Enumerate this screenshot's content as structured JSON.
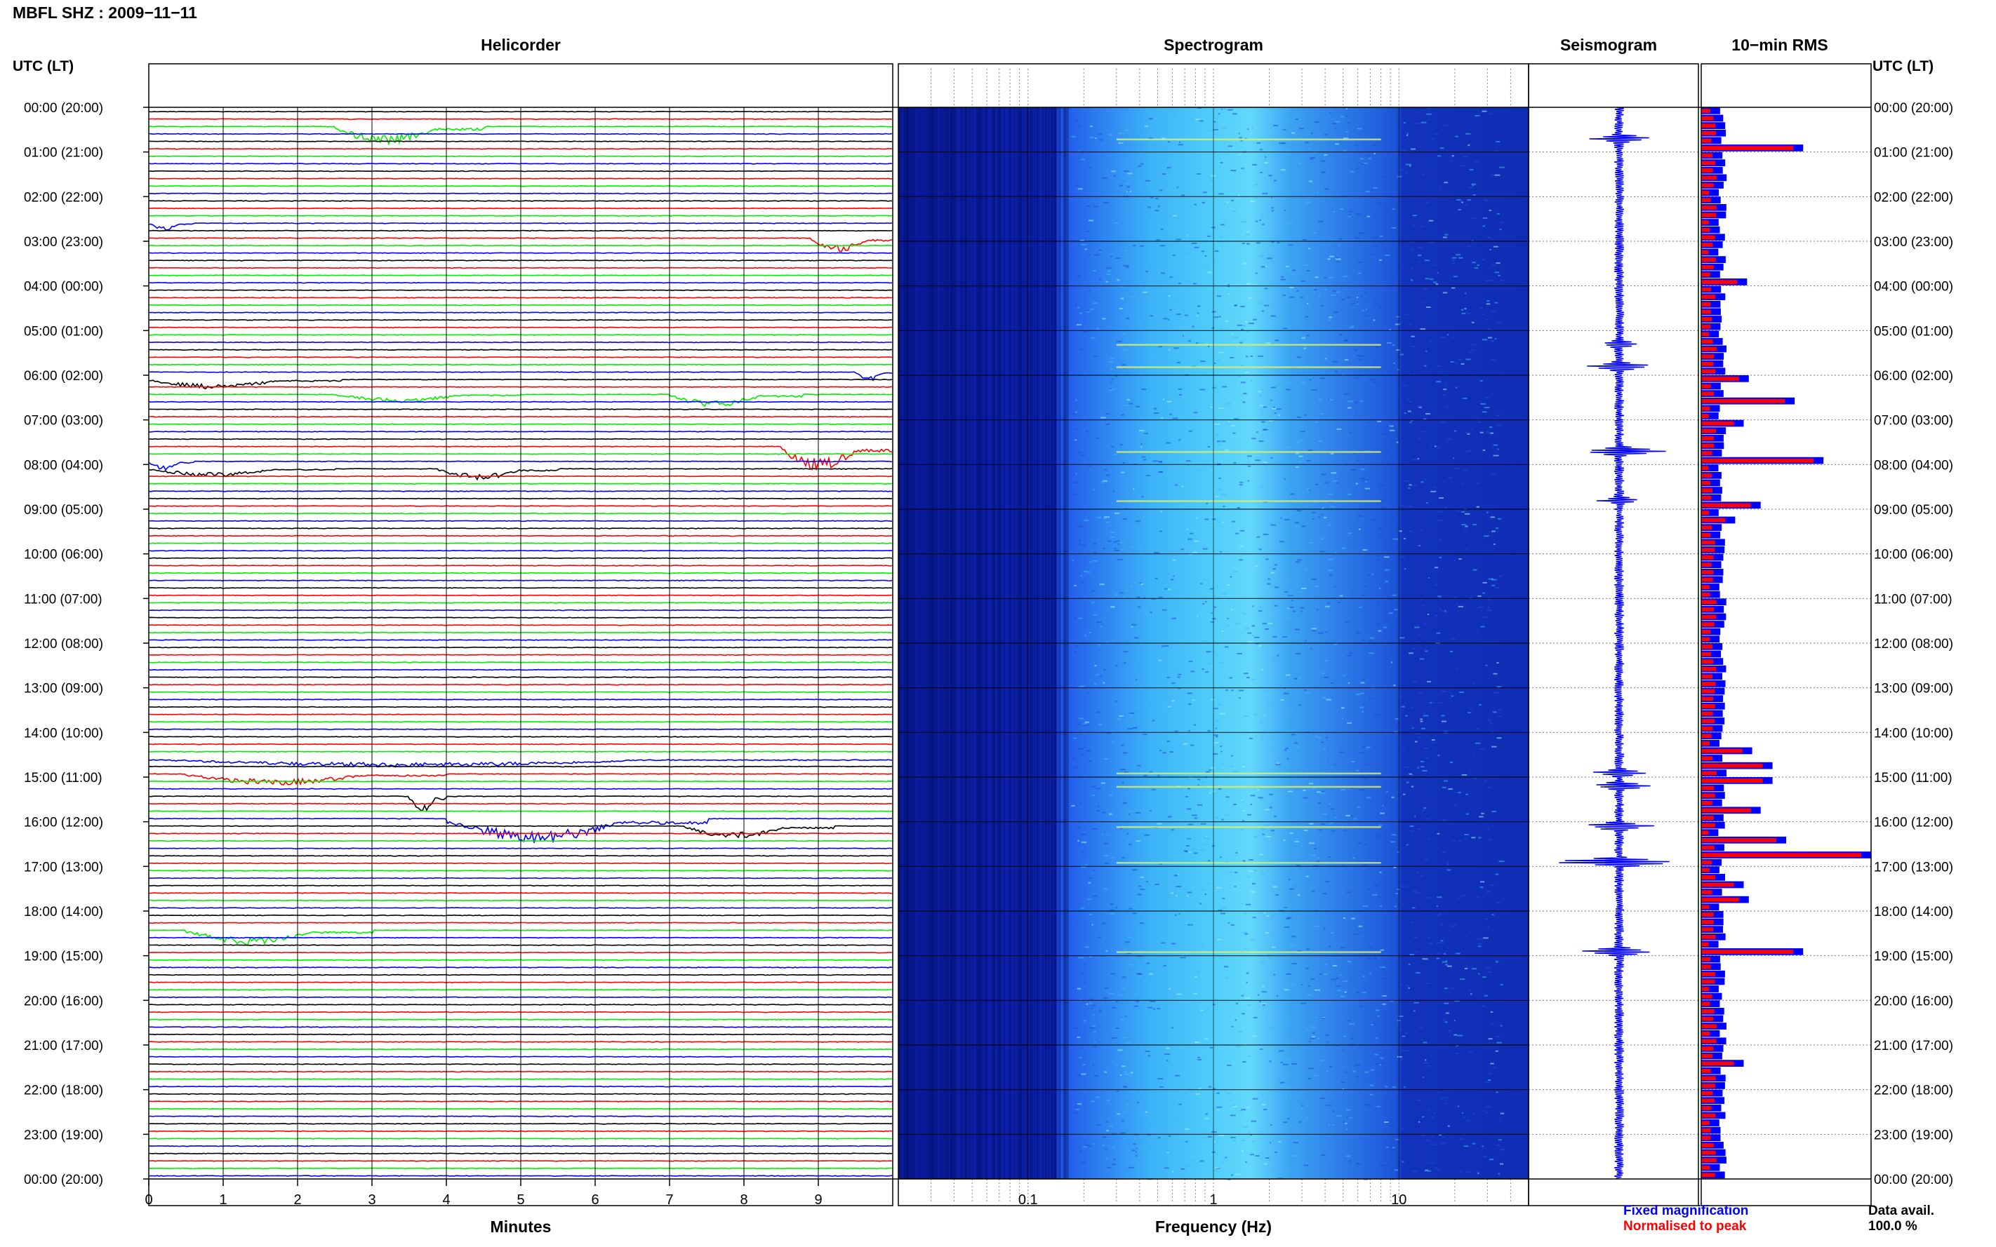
{
  "figure": {
    "title": "MBFL SHZ : 2009−11−11",
    "panel_titles": {
      "helicorder": "Helicorder",
      "spectrogram": "Spectrogram",
      "seismogram": "Seismogram",
      "rms": "10−min RMS"
    },
    "left_axis_header": "UTC (LT)",
    "right_axis_header": "UTC (LT)",
    "helicorder_xlabel": "Minutes",
    "spectrogram_xlabel": "Frequency (Hz)",
    "legend_fixed": "Fixed magnification",
    "legend_normalised": "Normalised to peak",
    "data_avail_label": "Data avail.",
    "data_avail_value": "100.0 %"
  },
  "colors": {
    "trace_cycle": [
      "#000000",
      "#ff0000",
      "#00ee00",
      "#0000ff"
    ],
    "fixed": "#0000ff",
    "normalised": "#ff0000",
    "spectrogram_dark": "#0a1a9a",
    "spectrogram_light": "#5ad7ff"
  },
  "chart_data": [
    {
      "type": "line",
      "name": "helicorder",
      "xlabel": "Minutes",
      "xlim": [
        0,
        10
      ],
      "x_ticks": [
        "0",
        "1",
        "2",
        "3",
        "4",
        "5",
        "6",
        "7",
        "8",
        "9"
      ],
      "row_labels": [
        "00:00 (20:00)",
        "01:00 (21:00)",
        "02:00 (22:00)",
        "03:00 (23:00)",
        "04:00 (00:00)",
        "05:00 (01:00)",
        "06:00 (02:00)",
        "07:00 (03:00)",
        "08:00 (04:00)",
        "09:00 (05:00)",
        "10:00 (06:00)",
        "11:00 (07:00)",
        "12:00 (08:00)",
        "13:00 (09:00)",
        "14:00 (10:00)",
        "15:00 (11:00)",
        "16:00 (12:00)",
        "17:00 (13:00)",
        "18:00 (14:00)",
        "19:00 (15:00)",
        "20:00 (16:00)",
        "21:00 (17:00)",
        "22:00 (18:00)",
        "23:00 (19:00)",
        "00:00 (20:00)"
      ],
      "traces_per_hour": 6,
      "events": [
        {
          "row": 2,
          "start_min": 2.5,
          "end_min": 4.5,
          "amp": 0.55
        },
        {
          "row": 15,
          "start_min": 0.0,
          "end_min": 0.6,
          "amp": 0.25
        },
        {
          "row": 17,
          "start_min": 8.9,
          "end_min": 10.0,
          "amp": 0.45
        },
        {
          "row": 35,
          "start_min": 9.5,
          "end_min": 10.0,
          "amp": 0.3
        },
        {
          "row": 36,
          "start_min": 0.0,
          "end_min": 2.6,
          "amp": 0.3
        },
        {
          "row": 38,
          "start_min": 2.5,
          "end_min": 5.0,
          "amp": 0.25
        },
        {
          "row": 38,
          "start_min": 7.0,
          "end_min": 8.8,
          "amp": 0.4
        },
        {
          "row": 45,
          "start_min": 8.5,
          "end_min": 10.0,
          "amp": 0.75
        },
        {
          "row": 47,
          "start_min": 0.0,
          "end_min": 0.6,
          "amp": 0.3
        },
        {
          "row": 48,
          "start_min": 0.0,
          "end_min": 2.5,
          "amp": 0.25
        },
        {
          "row": 48,
          "start_min": 3.9,
          "end_min": 5.5,
          "amp": 0.35
        },
        {
          "row": 87,
          "start_min": 0.0,
          "end_min": 10.0,
          "amp": 0.25
        },
        {
          "row": 89,
          "start_min": 0.5,
          "end_min": 4.0,
          "amp": 0.35
        },
        {
          "row": 92,
          "start_min": 3.5,
          "end_min": 4.0,
          "amp": 0.5
        },
        {
          "row": 95,
          "start_min": 4.0,
          "end_min": 7.5,
          "amp": 0.75
        },
        {
          "row": 96,
          "start_min": 7.2,
          "end_min": 9.2,
          "amp": 0.4
        },
        {
          "row": 110,
          "start_min": 0.5,
          "end_min": 3.0,
          "amp": 0.45
        }
      ]
    },
    {
      "type": "heatmap",
      "name": "spectrogram",
      "xlabel": "Frequency (Hz)",
      "xscale": "log",
      "xlim": [
        0.02,
        50
      ],
      "x_ticks": [
        "0.1",
        "1",
        "10"
      ],
      "noise_band_hz": [
        0.17,
        4.0
      ],
      "peak_hz": 0.4
    },
    {
      "type": "line",
      "name": "seismogram",
      "hours": 24,
      "spikes": [
        {
          "hour": 0.7,
          "amp": 0.45
        },
        {
          "hour": 5.3,
          "amp": 0.3
        },
        {
          "hour": 5.8,
          "amp": 0.5
        },
        {
          "hour": 7.7,
          "amp": 0.6
        },
        {
          "hour": 8.8,
          "amp": 0.3
        },
        {
          "hour": 14.9,
          "amp": 0.4
        },
        {
          "hour": 15.2,
          "amp": 0.4
        },
        {
          "hour": 16.1,
          "amp": 0.5
        },
        {
          "hour": 16.9,
          "amp": 0.9
        },
        {
          "hour": 18.9,
          "amp": 0.55
        }
      ]
    },
    {
      "type": "bar",
      "name": "rms",
      "title": "10−min RMS",
      "bins": 144,
      "bin_minutes": 10,
      "peaks": [
        {
          "bin": 5,
          "value": 0.6
        },
        {
          "bin": 23,
          "value": 0.27
        },
        {
          "bin": 36,
          "value": 0.28
        },
        {
          "bin": 39,
          "value": 0.55
        },
        {
          "bin": 42,
          "value": 0.25
        },
        {
          "bin": 47,
          "value": 0.72
        },
        {
          "bin": 53,
          "value": 0.35
        },
        {
          "bin": 55,
          "value": 0.2
        },
        {
          "bin": 86,
          "value": 0.3
        },
        {
          "bin": 88,
          "value": 0.42
        },
        {
          "bin": 90,
          "value": 0.42
        },
        {
          "bin": 94,
          "value": 0.35
        },
        {
          "bin": 98,
          "value": 0.5
        },
        {
          "bin": 100,
          "value": 1.0
        },
        {
          "bin": 104,
          "value": 0.25
        },
        {
          "bin": 106,
          "value": 0.28
        },
        {
          "bin": 113,
          "value": 0.6
        },
        {
          "bin": 128,
          "value": 0.25
        }
      ]
    }
  ]
}
